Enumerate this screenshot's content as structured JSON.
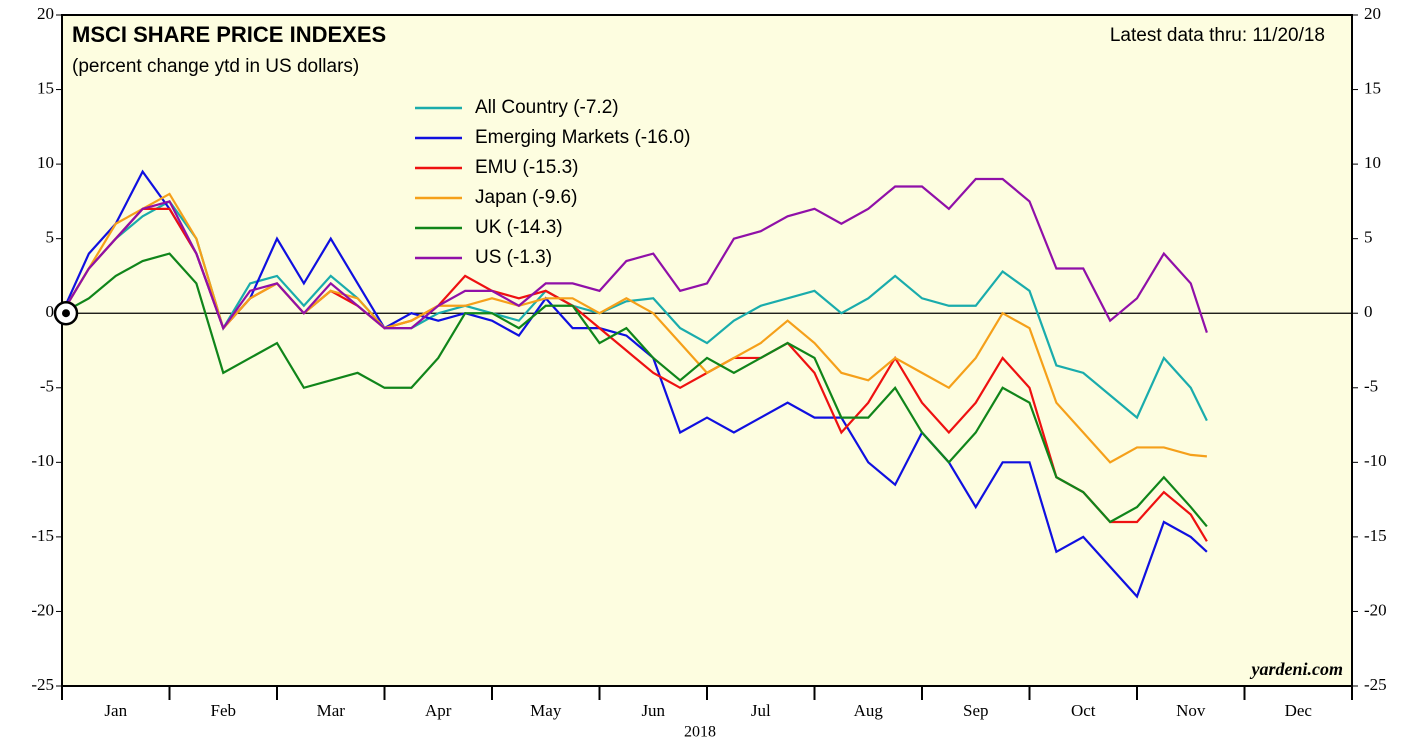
{
  "chart_data": {
    "type": "line",
    "title": "MSCI SHARE PRICE INDEXES",
    "subtitle": "(percent change ytd in US dollars)",
    "annotation": "Latest data thru: 11/20/18",
    "source": "yardeni.com",
    "xlabel": "2018",
    "x": [
      0,
      0.25,
      0.5,
      0.75,
      1,
      1.25,
      1.5,
      1.75,
      2,
      2.25,
      2.5,
      2.75,
      3,
      3.25,
      3.5,
      3.75,
      4,
      4.25,
      4.5,
      4.75,
      5,
      5.25,
      5.5,
      5.75,
      6,
      6.25,
      6.5,
      6.75,
      7,
      7.25,
      7.5,
      7.75,
      8,
      8.25,
      8.5,
      8.75,
      9,
      9.25,
      9.5,
      9.75,
      10,
      10.25,
      10.5,
      10.65
    ],
    "xlim": [
      0,
      12
    ],
    "xticks": [
      {
        "value": 0.5,
        "label": "Jan"
      },
      {
        "value": 1.5,
        "label": "Feb"
      },
      {
        "value": 2.5,
        "label": "Mar"
      },
      {
        "value": 3.5,
        "label": "Apr"
      },
      {
        "value": 4.5,
        "label": "May"
      },
      {
        "value": 5.5,
        "label": "Jun"
      },
      {
        "value": 6.5,
        "label": "Jul"
      },
      {
        "value": 7.5,
        "label": "Aug"
      },
      {
        "value": 8.5,
        "label": "Sep"
      },
      {
        "value": 9.5,
        "label": "Oct"
      },
      {
        "value": 10.5,
        "label": "Nov"
      },
      {
        "value": 11.5,
        "label": "Dec"
      }
    ],
    "ylim": [
      -25,
      20
    ],
    "yticks": [
      -25,
      -20,
      -15,
      -10,
      -5,
      0,
      5,
      10,
      15,
      20
    ],
    "series": [
      {
        "name": "All Country (-7.2)",
        "color": "#1aacac",
        "values": [
          0,
          3,
          5,
          6.5,
          7.5,
          5,
          -1,
          2,
          2.5,
          0.5,
          2.5,
          1,
          -1,
          -1,
          0,
          0.5,
          0,
          -0.5,
          1.5,
          0.5,
          0,
          0.8,
          1,
          -1,
          -2,
          -0.5,
          0.5,
          1,
          1.5,
          0,
          1,
          2.5,
          1,
          0.5,
          0.5,
          2.8,
          1.5,
          -3.5,
          -4,
          -5.5,
          -7,
          -3,
          -5,
          -7.2
        ]
      },
      {
        "name": "Emerging Markets (-16.0)",
        "color": "#1010e0",
        "values": [
          0,
          4,
          6,
          9.5,
          7,
          4,
          -1,
          1,
          5,
          2,
          5,
          2,
          -1,
          0,
          -0.5,
          0,
          -0.5,
          -1.5,
          1,
          -1,
          -1,
          -1.5,
          -3,
          -8,
          -7,
          -8,
          -7,
          -6,
          -7,
          -7,
          -10,
          -11.5,
          -8,
          -10,
          -13,
          -10,
          -10,
          -16,
          -15,
          -17,
          -19,
          -14,
          -15,
          -16
        ]
      },
      {
        "name": "EMU (-15.3)",
        "color": "#ee1111",
        "values": [
          0,
          3,
          5,
          7,
          7,
          4,
          -1,
          1,
          2,
          0,
          1.5,
          0.5,
          -1,
          -0.5,
          0.5,
          2.5,
          1.5,
          1,
          1.5,
          0.5,
          -1,
          -2.5,
          -4,
          -5,
          -4,
          -3,
          -3,
          -2,
          -4,
          -8,
          -6,
          -3,
          -6,
          -8,
          -6,
          -3,
          -5,
          -11,
          -12,
          -14,
          -14,
          -12,
          -13.5,
          -15.3
        ]
      },
      {
        "name": "Japan (-9.6)",
        "color": "#f5a01a",
        "values": [
          0,
          3,
          6,
          7,
          8,
          5,
          -1,
          1,
          2,
          0,
          1.5,
          1,
          -1,
          -0.5,
          0.5,
          0.5,
          1,
          0.5,
          1,
          1,
          0,
          1,
          0,
          -2,
          -4,
          -3,
          -2,
          -0.5,
          -2,
          -4,
          -4.5,
          -3,
          -4,
          -5,
          -3,
          0,
          -1,
          -6,
          -8,
          -10,
          -9,
          -9,
          -9.5,
          -9.6
        ]
      },
      {
        "name": "UK (-14.3)",
        "color": "#10851a",
        "values": [
          0,
          1,
          2.5,
          3.5,
          4,
          2,
          -4,
          -3,
          -2,
          -5,
          -4.5,
          -4,
          -5,
          -5,
          -3,
          0,
          0,
          -1,
          0.5,
          0.5,
          -2,
          -1,
          -3,
          -4.5,
          -3,
          -4,
          -3,
          -2,
          -3,
          -7,
          -7,
          -5,
          -8,
          -10,
          -8,
          -5,
          -6,
          -11,
          -12,
          -14,
          -13,
          -11,
          -13,
          -14.3
        ]
      },
      {
        "name": "US (-1.3)",
        "color": "#9010a8",
        "values": [
          0,
          3,
          5,
          7,
          7.5,
          4,
          -1,
          1.5,
          2,
          0,
          2,
          0.5,
          -1,
          -1,
          0.5,
          1.5,
          1.5,
          0.5,
          2,
          2,
          1.5,
          3.5,
          4,
          1.5,
          2,
          5,
          5.5,
          6.5,
          7,
          6,
          7,
          8.5,
          8.5,
          7,
          9,
          9,
          7.5,
          3,
          3,
          -0.5,
          1,
          4,
          2,
          -1.3
        ]
      }
    ]
  }
}
